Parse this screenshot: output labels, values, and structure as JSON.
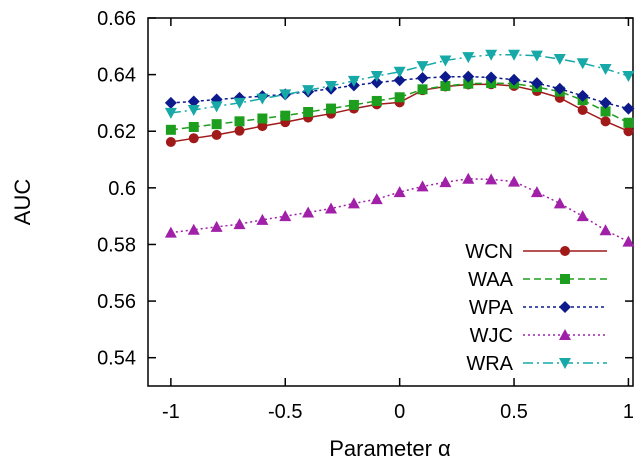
{
  "chart_data": {
    "type": "line",
    "xlabel": "Parameter α",
    "ylabel": "AUC",
    "xlim": [
      -1.1,
      1.02
    ],
    "ylim": [
      0.53,
      0.66
    ],
    "xticks": [
      -1,
      -0.5,
      0,
      0.5,
      1
    ],
    "xtick_labels": [
      "-1",
      "-0.5",
      "0",
      "0.5",
      "1"
    ],
    "yticks": [
      0.54,
      0.56,
      0.58,
      0.6,
      0.62,
      0.64,
      0.66
    ],
    "ytick_labels": [
      "0.54",
      "0.56",
      "0.58",
      "0.6",
      "0.62",
      "0.64",
      "0.66"
    ],
    "grid": false,
    "legend_position": "bottom-right",
    "x": [
      -1,
      -0.9,
      -0.8,
      -0.7,
      -0.6,
      -0.5,
      -0.4,
      -0.3,
      -0.2,
      -0.1,
      0,
      0.1,
      0.2,
      0.3,
      0.4,
      0.5,
      0.6,
      0.7,
      0.8,
      0.9,
      1
    ],
    "series": [
      {
        "name": "WCN",
        "color": "#a11a1a",
        "marker": "circle",
        "dash": "",
        "values": [
          0.6162,
          0.6175,
          0.6187,
          0.6202,
          0.6218,
          0.6232,
          0.6248,
          0.6262,
          0.628,
          0.6295,
          0.6302,
          0.6345,
          0.6358,
          0.6365,
          0.6366,
          0.636,
          0.6342,
          0.6318,
          0.6275,
          0.6235,
          0.62
        ]
      },
      {
        "name": "WAA",
        "color": "#1e9e1e",
        "marker": "square",
        "dash": "7,4",
        "values": [
          0.6205,
          0.6215,
          0.6225,
          0.6235,
          0.6245,
          0.6255,
          0.6268,
          0.628,
          0.6293,
          0.6307,
          0.632,
          0.6348,
          0.636,
          0.6368,
          0.637,
          0.6368,
          0.6356,
          0.634,
          0.631,
          0.627,
          0.623
        ]
      },
      {
        "name": "WPA",
        "color": "#0c1a8c",
        "marker": "diamond",
        "dash": "3,3",
        "values": [
          0.63,
          0.6305,
          0.6312,
          0.6318,
          0.6324,
          0.633,
          0.634,
          0.635,
          0.6362,
          0.6372,
          0.638,
          0.6388,
          0.6392,
          0.6393,
          0.639,
          0.6382,
          0.637,
          0.635,
          0.6325,
          0.63,
          0.628
        ]
      },
      {
        "name": "WJC",
        "color": "#a020a8",
        "marker": "triangle-up",
        "dash": "2,3",
        "values": [
          0.5842,
          0.5852,
          0.5862,
          0.5872,
          0.5887,
          0.59,
          0.5913,
          0.5927,
          0.5945,
          0.596,
          0.5985,
          0.6005,
          0.602,
          0.6032,
          0.603,
          0.6022,
          0.5985,
          0.5945,
          0.59,
          0.585,
          0.581
        ]
      },
      {
        "name": "WRA",
        "color": "#17a8a8",
        "marker": "triangle-down",
        "dash": "10,4,2,4",
        "values": [
          0.6265,
          0.6275,
          0.6288,
          0.63,
          0.6315,
          0.633,
          0.6345,
          0.636,
          0.6378,
          0.6395,
          0.641,
          0.643,
          0.645,
          0.6462,
          0.647,
          0.647,
          0.6467,
          0.6455,
          0.644,
          0.642,
          0.6395
        ]
      }
    ]
  }
}
